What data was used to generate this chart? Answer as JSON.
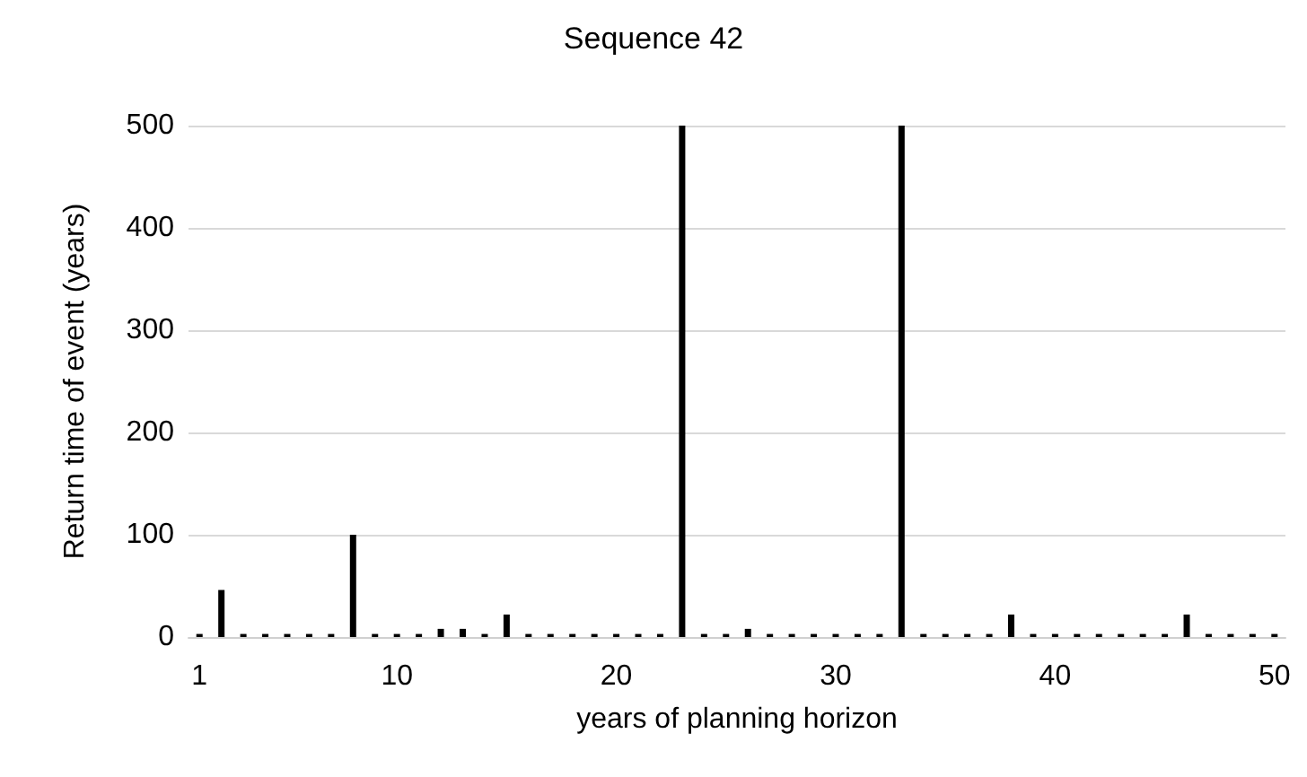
{
  "chart_data": {
    "type": "bar",
    "title": "Sequence 42",
    "xlabel": "years of planning horizon",
    "ylabel": "Return time of event (years)",
    "categories": [
      "1",
      null,
      null,
      null,
      null,
      null,
      null,
      null,
      null,
      "10",
      null,
      null,
      null,
      null,
      null,
      null,
      null,
      null,
      null,
      "20",
      null,
      null,
      null,
      null,
      null,
      null,
      null,
      null,
      null,
      "30",
      null,
      null,
      null,
      null,
      null,
      null,
      null,
      null,
      null,
      "40",
      null,
      null,
      null,
      null,
      null,
      null,
      null,
      null,
      null,
      "50"
    ],
    "values": [
      3,
      46,
      3,
      3,
      3,
      3,
      3,
      100,
      3,
      3,
      3,
      8,
      8,
      3,
      22,
      3,
      3,
      3,
      3,
      3,
      3,
      3,
      500,
      3,
      3,
      8,
      3,
      3,
      3,
      3,
      3,
      3,
      500,
      3,
      3,
      3,
      3,
      22,
      3,
      3,
      3,
      3,
      3,
      3,
      3,
      22,
      3,
      3,
      3,
      3
    ],
    "color": "#000000",
    "ylim": [
      0,
      500
    ],
    "yticks": [
      0,
      100,
      200,
      300,
      400,
      500
    ],
    "grid": "y"
  }
}
